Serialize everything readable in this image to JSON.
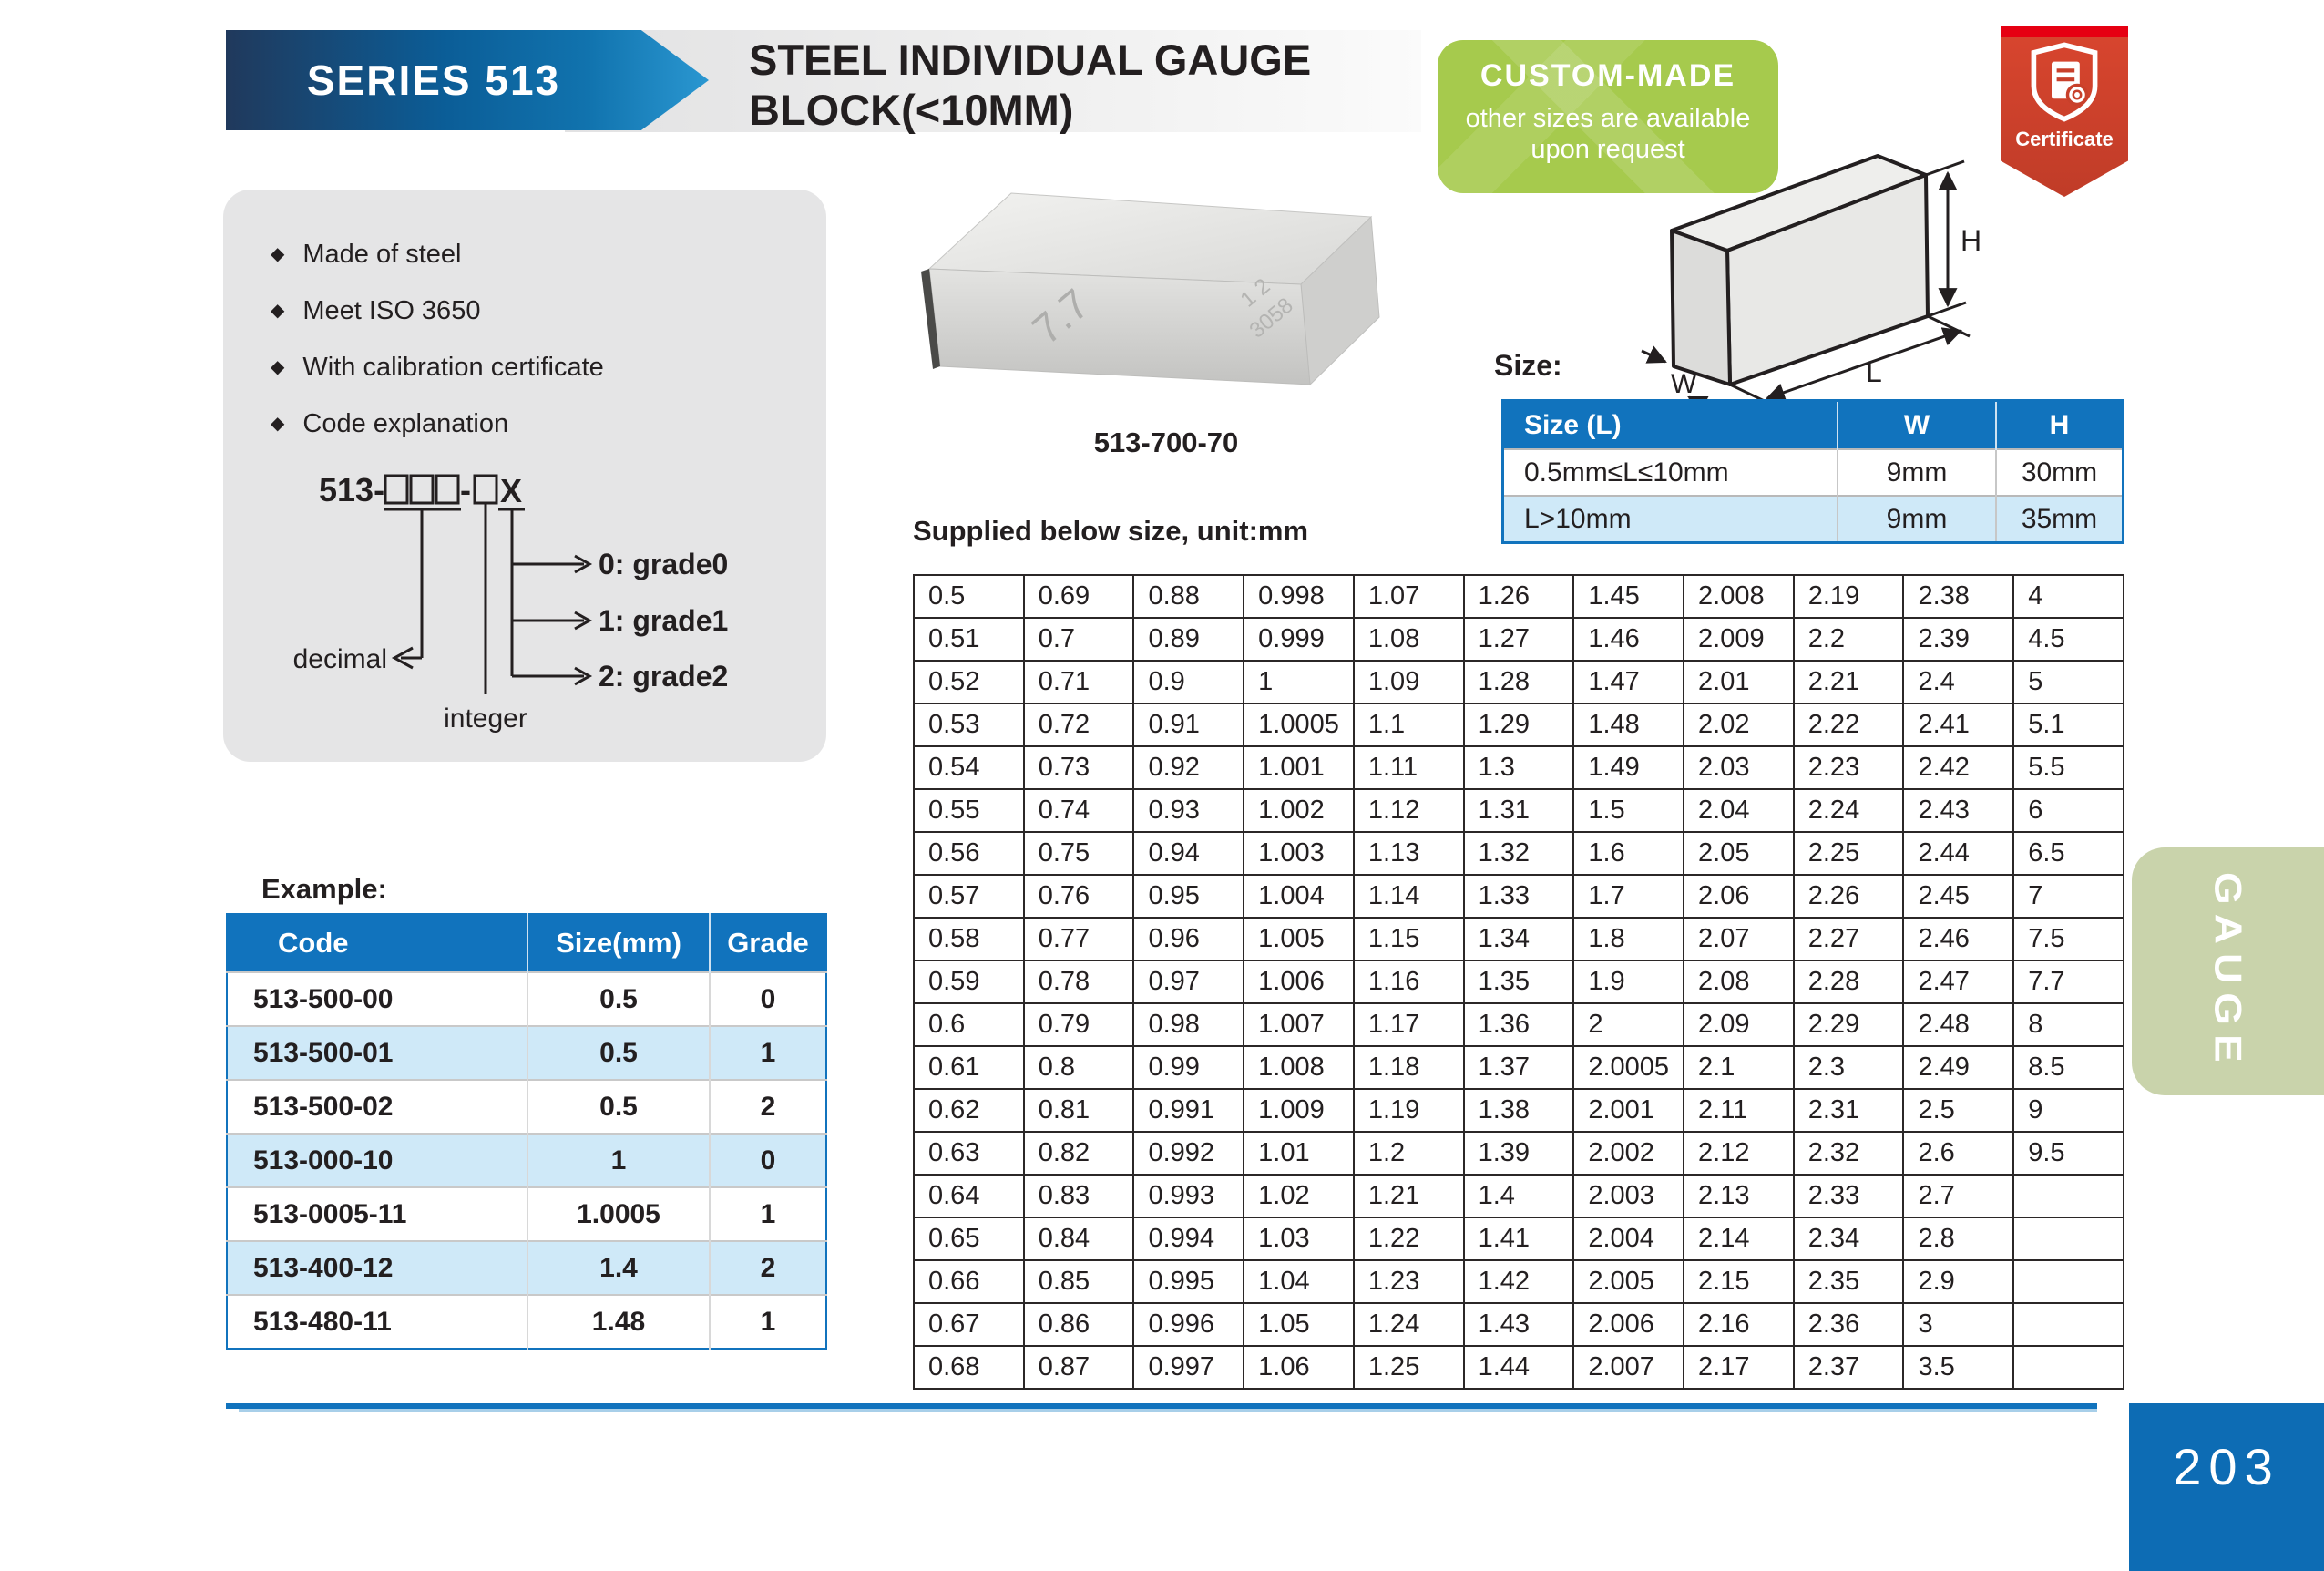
{
  "page": {
    "series": "SERIES 513",
    "title_line1": "STEEL INDIVIDUAL GAUGE",
    "title_line2": "BLOCK(<10MM)",
    "bullet": "◆",
    "page_number": "203",
    "side_tab": "GAUGE"
  },
  "badge": {
    "title": "CUSTOM-MADE",
    "line1": "other sizes are available",
    "line2": "upon request"
  },
  "certificate": {
    "label": "Certificate"
  },
  "features": [
    "Made of steel",
    "Meet ISO 3650",
    "With calibration certificate",
    "Code explanation"
  ],
  "code_diagram": {
    "prefix": "513-",
    "dash": "-",
    "suffix": "X",
    "decimal_label": "decimal",
    "integer_label": "integer",
    "grades": [
      "0: grade0",
      "1: grade1",
      "2: grade2"
    ]
  },
  "product": {
    "caption": "513-700-70",
    "engraving_main": "7.7",
    "engraving_side1": "1 2",
    "engraving_side2": "3058"
  },
  "size_section": {
    "label": "Size:",
    "dim_w": "W",
    "dim_l": "L",
    "dim_h": "H",
    "headers": [
      "Size (L)",
      "W",
      "H"
    ],
    "rows": [
      [
        "0.5mm≤L≤10mm",
        "9mm",
        "30mm"
      ],
      [
        "L>10mm",
        "9mm",
        "35mm"
      ]
    ]
  },
  "supplied_table": {
    "title": "Supplied below size, unit:mm",
    "rows": [
      [
        "0.5",
        "0.69",
        "0.88",
        "0.998",
        "1.07",
        "1.26",
        "1.45",
        "2.008",
        "2.19",
        "2.38",
        "4"
      ],
      [
        "0.51",
        "0.7",
        "0.89",
        "0.999",
        "1.08",
        "1.27",
        "1.46",
        "2.009",
        "2.2",
        "2.39",
        "4.5"
      ],
      [
        "0.52",
        "0.71",
        "0.9",
        "1",
        "1.09",
        "1.28",
        "1.47",
        "2.01",
        "2.21",
        "2.4",
        "5"
      ],
      [
        "0.53",
        "0.72",
        "0.91",
        "1.0005",
        "1.1",
        "1.29",
        "1.48",
        "2.02",
        "2.22",
        "2.41",
        "5.1"
      ],
      [
        "0.54",
        "0.73",
        "0.92",
        "1.001",
        "1.11",
        "1.3",
        "1.49",
        "2.03",
        "2.23",
        "2.42",
        "5.5"
      ],
      [
        "0.55",
        "0.74",
        "0.93",
        "1.002",
        "1.12",
        "1.31",
        "1.5",
        "2.04",
        "2.24",
        "2.43",
        "6"
      ],
      [
        "0.56",
        "0.75",
        "0.94",
        "1.003",
        "1.13",
        "1.32",
        "1.6",
        "2.05",
        "2.25",
        "2.44",
        "6.5"
      ],
      [
        "0.57",
        "0.76",
        "0.95",
        "1.004",
        "1.14",
        "1.33",
        "1.7",
        "2.06",
        "2.26",
        "2.45",
        "7"
      ],
      [
        "0.58",
        "0.77",
        "0.96",
        "1.005",
        "1.15",
        "1.34",
        "1.8",
        "2.07",
        "2.27",
        "2.46",
        "7.5"
      ],
      [
        "0.59",
        "0.78",
        "0.97",
        "1.006",
        "1.16",
        "1.35",
        "1.9",
        "2.08",
        "2.28",
        "2.47",
        "7.7"
      ],
      [
        "0.6",
        "0.79",
        "0.98",
        "1.007",
        "1.17",
        "1.36",
        "2",
        "2.09",
        "2.29",
        "2.48",
        "8"
      ],
      [
        "0.61",
        "0.8",
        "0.99",
        "1.008",
        "1.18",
        "1.37",
        "2.0005",
        "2.1",
        "2.3",
        "2.49",
        "8.5"
      ],
      [
        "0.62",
        "0.81",
        "0.991",
        "1.009",
        "1.19",
        "1.38",
        "2.001",
        "2.11",
        "2.31",
        "2.5",
        "9"
      ],
      [
        "0.63",
        "0.82",
        "0.992",
        "1.01",
        "1.2",
        "1.39",
        "2.002",
        "2.12",
        "2.32",
        "2.6",
        "9.5"
      ],
      [
        "0.64",
        "0.83",
        "0.993",
        "1.02",
        "1.21",
        "1.4",
        "2.003",
        "2.13",
        "2.33",
        "2.7",
        ""
      ],
      [
        "0.65",
        "0.84",
        "0.994",
        "1.03",
        "1.22",
        "1.41",
        "2.004",
        "2.14",
        "2.34",
        "2.8",
        ""
      ],
      [
        "0.66",
        "0.85",
        "0.995",
        "1.04",
        "1.23",
        "1.42",
        "2.005",
        "2.15",
        "2.35",
        "2.9",
        ""
      ],
      [
        "0.67",
        "0.86",
        "0.996",
        "1.05",
        "1.24",
        "1.43",
        "2.006",
        "2.16",
        "2.36",
        "3",
        ""
      ],
      [
        "0.68",
        "0.87",
        "0.997",
        "1.06",
        "1.25",
        "1.44",
        "2.007",
        "2.17",
        "2.37",
        "3.5",
        ""
      ]
    ]
  },
  "example_table": {
    "title": "Example:",
    "headers": [
      "Code",
      "Size(mm)",
      "Grade"
    ],
    "rows": [
      [
        "513-500-00",
        "0.5",
        "0"
      ],
      [
        "513-500-01",
        "0.5",
        "1"
      ],
      [
        "513-500-02",
        "0.5",
        "2"
      ],
      [
        "513-000-10",
        "1",
        "0"
      ],
      [
        "513-0005-11",
        "1.0005",
        "1"
      ],
      [
        "513-400-12",
        "1.4",
        "2"
      ],
      [
        "513-480-11",
        "1.48",
        "1"
      ]
    ]
  },
  "colors": {
    "table_header_blue": "#1173bd",
    "row_alt_blue": "#cfe9f8",
    "badge_green": "#a6ca4d",
    "certificate_red": "#c8402b",
    "banner_blue_dark": "#20395c",
    "banner_blue_light": "#2a97d1",
    "side_tab_green": "#c9d3ab",
    "page_box_blue": "#0d6cb4"
  }
}
